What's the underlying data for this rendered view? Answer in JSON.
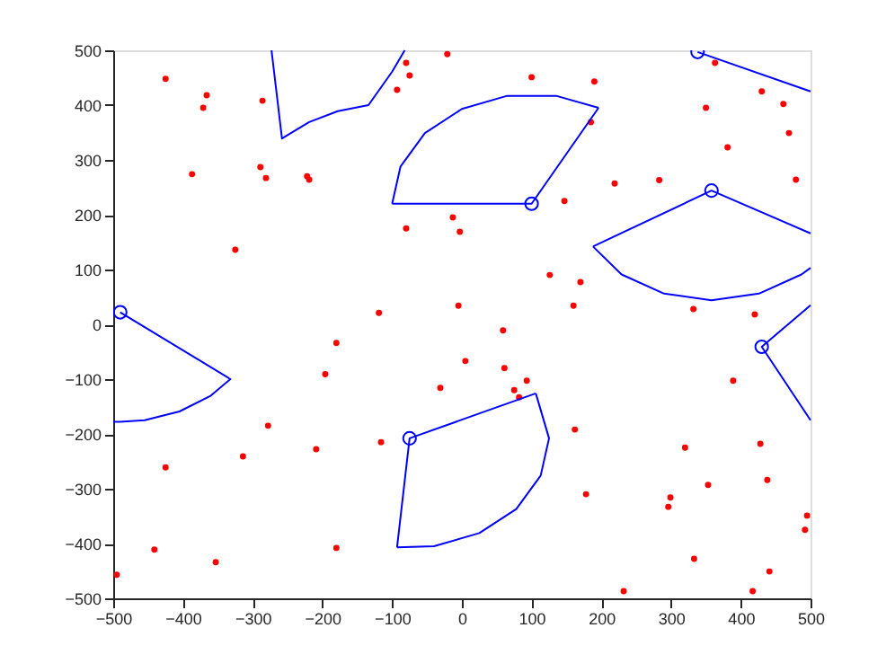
{
  "chart_data": {
    "type": "scatter",
    "xlim": [
      -500,
      500
    ],
    "ylim": [
      -500,
      500
    ],
    "xticks": [
      -500,
      -400,
      -300,
      -200,
      -100,
      0,
      100,
      200,
      300,
      400,
      500
    ],
    "yticks": [
      -500,
      -400,
      -300,
      -200,
      -100,
      0,
      100,
      200,
      300,
      400,
      500
    ],
    "grid": false,
    "series": [
      {
        "color": "#ff0000",
        "x": [
          -80,
          -75,
          -93,
          -21,
          -13,
          -3,
          -80,
          -5,
          -119,
          -425,
          -366,
          -371,
          -286,
          -387,
          -289,
          -281,
          -222,
          -219,
          -325,
          100,
          190,
          185,
          219,
          147,
          283,
          363,
          430,
          461,
          350,
          469,
          381,
          479,
          126,
          170,
          160,
          332,
          420,
          -180,
          -196,
          -278,
          -314,
          -425,
          -209,
          -116,
          -441,
          -353,
          -180,
          -495,
          -31,
          5,
          59,
          61,
          75,
          82,
          93,
          389,
          320,
          428,
          162,
          178,
          353,
          438,
          299,
          296,
          495,
          492,
          333,
          441,
          232,
          417
        ],
        "values": [
          477,
          454,
          428,
          493,
          195,
          169,
          175,
          34,
          21,
          448,
          418,
          395,
          408,
          274,
          287,
          267,
          270,
          264,
          136,
          451,
          443,
          369,
          257,
          225,
          263,
          477,
          425,
          402,
          395,
          349,
          323,
          264,
          90,
          77,
          34,
          28,
          18,
          -34,
          -91,
          -185,
          -241,
          -261,
          -228,
          -215,
          -411,
          -434,
          -408,
          -457,
          -116,
          -67,
          -11,
          -80,
          -120,
          -133,
          -103,
          -103,
          -225,
          -218,
          -192,
          -310,
          -293,
          -284,
          -316,
          -333,
          -349,
          -375,
          -428,
          -451,
          -487,
          -487
        ]
      },
      {
        "type": "line",
        "color": "#0000ff",
        "x": [
          -490,
          -332,
          -361,
          -405,
          -455,
          -490,
          -500
        ],
        "values": [
          22,
          -100,
          -131,
          -159,
          -175,
          -178,
          -178
        ]
      },
      {
        "type": "line",
        "color": "#0000ff",
        "x": [
          -273,
          -258,
          -219,
          -178,
          -134,
          -100,
          -82
        ],
        "values": [
          500,
          339,
          369,
          389,
          400,
          461,
          500
        ]
      },
      {
        "type": "line",
        "color": "#0000ff",
        "x": [
          -100,
          100,
          196
        ],
        "values": [
          220,
          220,
          395
        ]
      },
      {
        "type": "line",
        "color": "#0000ff",
        "x": [
          -100,
          -88,
          -53,
          0,
          65,
          135,
          196
        ],
        "values": [
          220,
          288,
          349,
          393,
          417,
          417,
          395
        ]
      },
      {
        "type": "line",
        "color": "#0000ff",
        "x": [
          338,
          500
        ],
        "values": [
          497,
          425
        ]
      },
      {
        "type": "line",
        "color": "#0000ff",
        "x": [
          188,
          358,
          500
        ],
        "values": [
          142,
          244,
          166
        ]
      },
      {
        "type": "line",
        "color": "#0000ff",
        "x": [
          188,
          229,
          290,
          358,
          426,
          487,
          500
        ],
        "values": [
          142,
          91,
          56,
          44,
          56,
          91,
          103
        ]
      },
      {
        "type": "line",
        "color": "#0000ff",
        "x": [
          500,
          430,
          500
        ],
        "values": [
          35,
          -41,
          -175
        ]
      },
      {
        "type": "line",
        "color": "#0000ff",
        "x": [
          -93,
          -75,
          106
        ],
        "values": [
          -407,
          -208,
          -126
        ]
      },
      {
        "type": "line",
        "color": "#0000ff",
        "x": [
          -93,
          -40,
          25,
          78,
          113,
          125,
          106
        ],
        "values": [
          -407,
          -405,
          -381,
          -337,
          -276,
          -208,
          -126
        ]
      },
      {
        "marker": "circle",
        "color": "#0000ff",
        "x": [
          -490,
          100,
          338,
          358,
          430,
          -75
        ],
        "values": [
          22,
          220,
          497,
          244,
          -41,
          -208
        ]
      }
    ]
  }
}
